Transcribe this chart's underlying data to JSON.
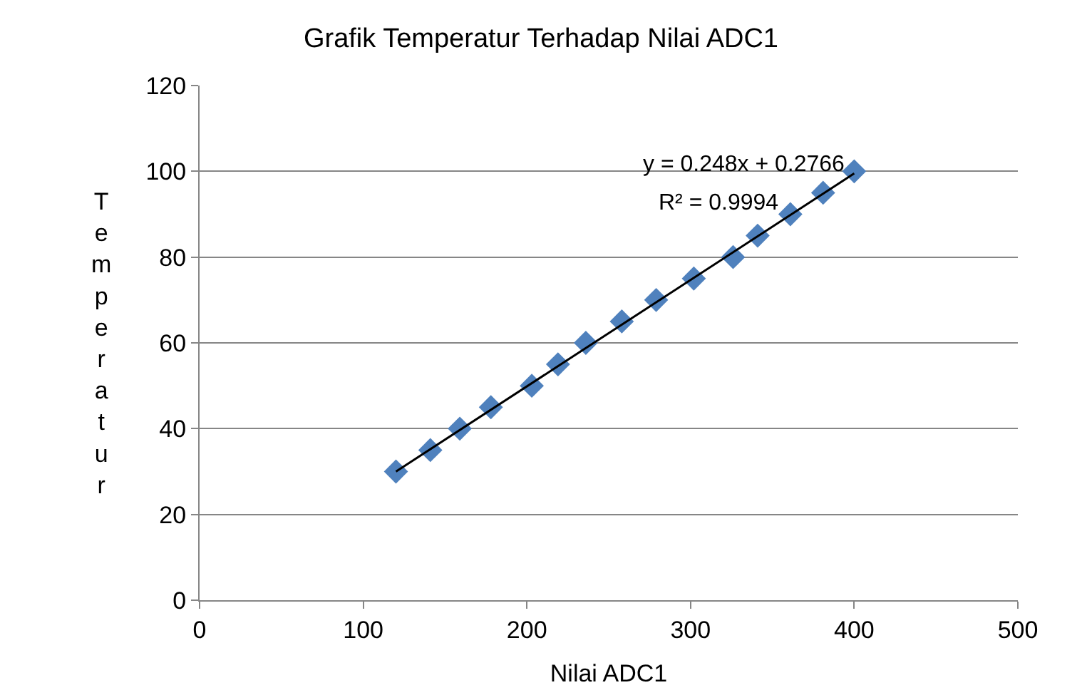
{
  "chart_data": {
    "type": "scatter",
    "title": "Grafik Temperatur Terhadap Nilai ADC1",
    "xlabel": "Nilai ADC1",
    "ylabel": "Temperatur",
    "series": [
      {
        "color": "#4f81bd",
        "marker": "diamond",
        "x": [
          120,
          141,
          159,
          178,
          203,
          219,
          236,
          258,
          279,
          302,
          326,
          341,
          361,
          381,
          400
        ],
        "values": [
          30,
          35,
          40,
          45,
          50,
          55,
          60,
          65,
          70,
          75,
          80,
          85,
          90,
          95,
          100
        ]
      },
      {
        "type": "line",
        "color": "#000000",
        "marker": "none",
        "line_style": "solid",
        "x": [
          120,
          400
        ],
        "values": [
          30,
          99.5
        ]
      }
    ],
    "annotations": [
      "y = 0.248x + 0.2766",
      "R² = 0.9994"
    ],
    "xlim": [
      0,
      500
    ],
    "xticks": [
      0,
      100,
      200,
      300,
      400,
      500
    ],
    "ylim": [
      0,
      120
    ],
    "yticks": [
      0,
      20,
      40,
      60,
      80,
      100,
      120
    ],
    "grid": "y"
  }
}
